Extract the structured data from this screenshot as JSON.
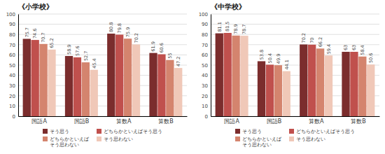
{
  "chart_data": [
    {
      "type": "bar",
      "title": "《小学校》",
      "categories": [
        "国語A",
        "国語B",
        "算数A",
        "算数B"
      ],
      "series": [
        {
          "name": "そう思う",
          "color": "#7B2D2D",
          "values": [
            75.7,
            58.9,
            80.8,
            61.9
          ]
        },
        {
          "name": "どちらかといえばそう思う",
          "color": "#C0504D",
          "values": [
            74.6,
            57.6,
            79.8,
            60.6
          ]
        },
        {
          "name": "どちらかといえば\nそう思わない",
          "color": "#D4846E",
          "values": [
            70.7,
            52.7,
            75.9,
            55.0
          ]
        },
        {
          "name": "そう思わない",
          "color": "#F0C8B8",
          "values": [
            65.2,
            45.4,
            70.2,
            47.2
          ]
        }
      ],
      "ylim": [
        0,
        100
      ],
      "yticks": [
        0,
        10,
        20,
        30,
        40,
        50,
        60,
        70,
        80,
        90,
        100
      ],
      "grid": true,
      "data_labels": true,
      "legend": "bottom"
    },
    {
      "type": "bar",
      "title": "《中学校》",
      "categories": [
        "国語A",
        "国語B",
        "算数A",
        "算数B"
      ],
      "series": [
        {
          "name": "そう思う",
          "color": "#7B2D2D",
          "values": [
            81.1,
            53.8,
            70.2,
            63.0
          ]
        },
        {
          "name": "どちらかといえばそう思う",
          "color": "#C0504D",
          "values": [
            81.5,
            50.4,
            70.0,
            63.0
          ]
        },
        {
          "name": "どちらかといえば\nそう思わない",
          "color": "#D4846E",
          "values": [
            78.9,
            49.9,
            66.2,
            58.4
          ]
        },
        {
          "name": "そう思わない",
          "color": "#F0C8B8",
          "values": [
            78.7,
            44.1,
            59.4,
            50.6
          ]
        }
      ],
      "ylim": [
        0,
        100
      ],
      "yticks": [
        0,
        10,
        20,
        30,
        40,
        50,
        60,
        70,
        80,
        90,
        100
      ],
      "grid": true,
      "data_labels": true,
      "legend": "bottom"
    }
  ]
}
